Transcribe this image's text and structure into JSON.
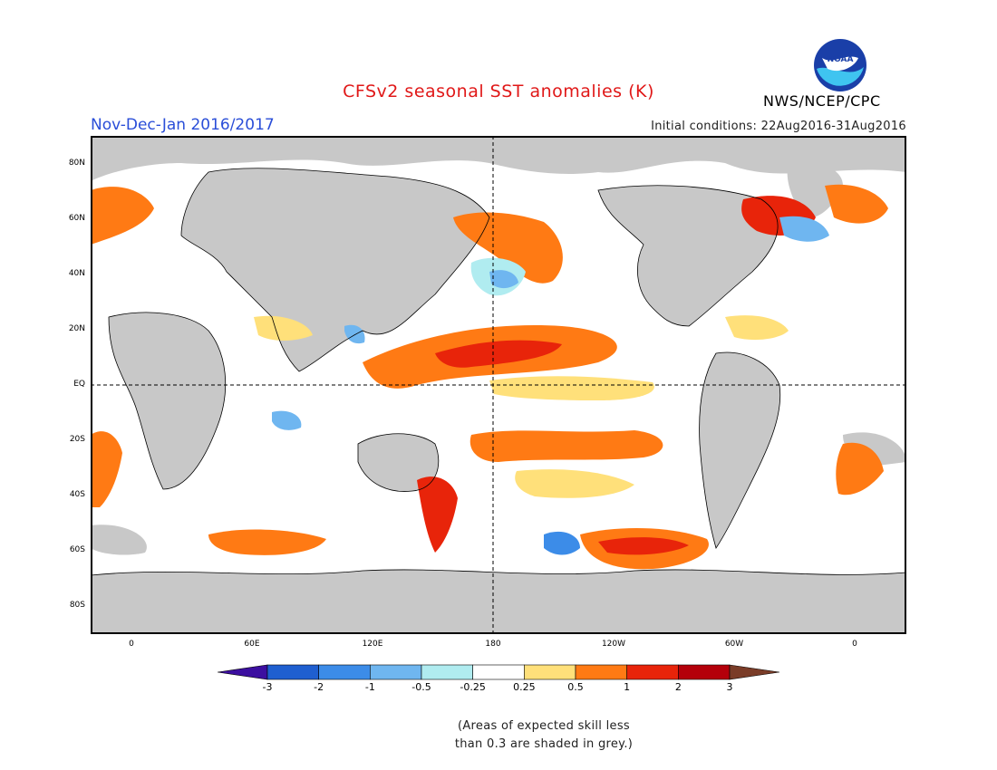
{
  "header": {
    "title": "CFSv2 seasonal SST anomalies (K)",
    "season": "Nov-Dec-Jan 2016/2017",
    "initial_conditions": "Initial conditions: 22Aug2016-31Aug2016",
    "agency": "NWS/NCEP/CPC",
    "logo_text": "NOAA"
  },
  "map": {
    "lat_labels": [
      "80N",
      "60N",
      "40N",
      "20N",
      "EQ",
      "20S",
      "40S",
      "60S",
      "80S"
    ],
    "lon_labels": [
      "0",
      "60E",
      "120E",
      "180",
      "120W",
      "60W",
      "0"
    ],
    "land_color": "#c8c8c8",
    "grey_skill_color": "#c8c8c8"
  },
  "legend": {
    "labels": [
      "-3",
      "-2",
      "-1",
      "-0.5",
      "-0.25",
      "0.25",
      "0.5",
      "1",
      "2",
      "3"
    ],
    "colors": [
      "#3c0fa0",
      "#1f5fd0",
      "#3c8ce8",
      "#6fb6f0",
      "#b0ecf0",
      "#ffffff",
      "#ffe07a",
      "#ff7a14",
      "#e8240a",
      "#b4000a",
      "#7a3c28"
    ]
  },
  "footnote": {
    "line1": "(Areas of expected skill less",
    "line2": "than 0.3 are shaded in grey.)"
  }
}
